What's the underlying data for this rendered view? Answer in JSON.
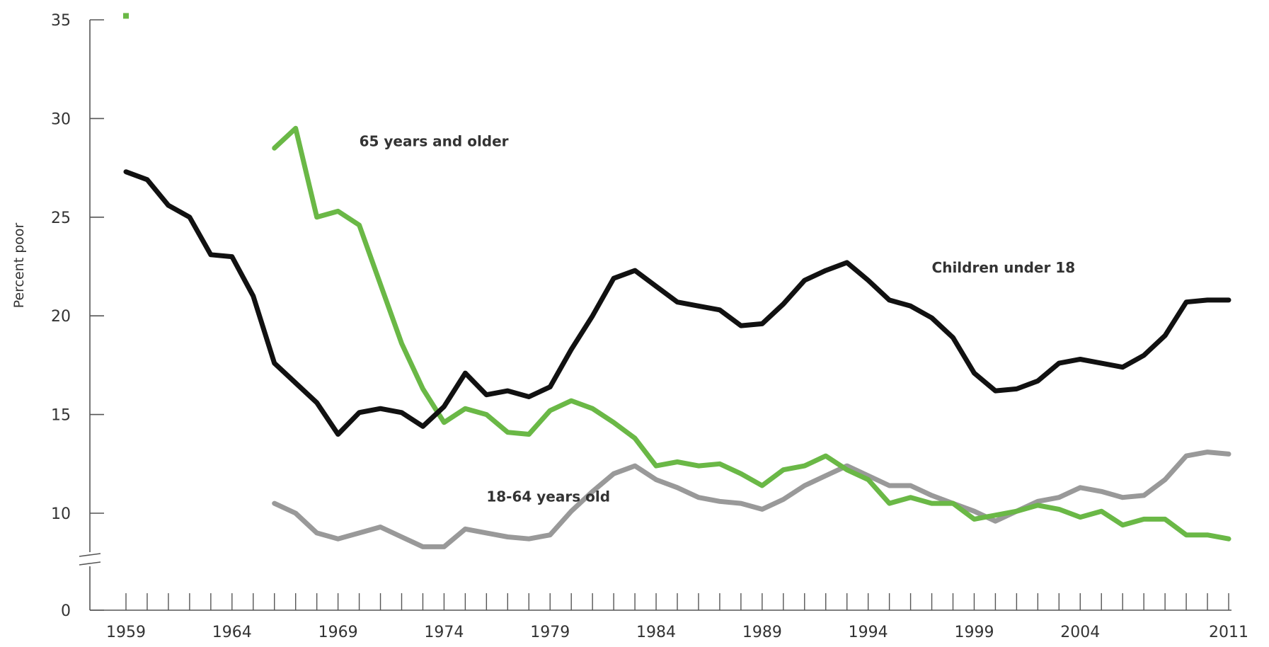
{
  "chart_data": {
    "type": "line",
    "title": "",
    "xlabel": "",
    "ylabel": "Percent poor",
    "xlim": [
      1959,
      2011
    ],
    "ylim": [
      0,
      35
    ],
    "y_axis_break": true,
    "grid": false,
    "legend": "inline-labels",
    "x_tick_labels": [
      "1959",
      "1964",
      "1969",
      "1974",
      "1979",
      "1984",
      "1989",
      "1994",
      "1999",
      "2004",
      "2011"
    ],
    "x_tick_values": [
      1959,
      1964,
      1969,
      1974,
      1979,
      1984,
      1989,
      1994,
      1999,
      2004,
      2011
    ],
    "y_tick_labels": [
      "0",
      "10",
      "15",
      "20",
      "25",
      "30",
      "35"
    ],
    "y_tick_values": [
      0,
      10,
      15,
      20,
      25,
      30,
      35
    ],
    "series": [
      {
        "name": "Children under 18",
        "color": "#111111",
        "x": [
          1959,
          1960,
          1961,
          1962,
          1963,
          1964,
          1965,
          1966,
          1967,
          1968,
          1969,
          1970,
          1971,
          1972,
          1973,
          1974,
          1975,
          1976,
          1977,
          1978,
          1979,
          1980,
          1981,
          1982,
          1983,
          1984,
          1985,
          1986,
          1987,
          1988,
          1989,
          1990,
          1991,
          1992,
          1993,
          1994,
          1995,
          1996,
          1997,
          1998,
          1999,
          2000,
          2001,
          2002,
          2003,
          2004,
          2005,
          2006,
          2007,
          2008,
          2009,
          2010,
          2011
        ],
        "values": [
          27.3,
          26.9,
          25.6,
          25.0,
          23.1,
          23.0,
          21.0,
          17.6,
          16.6,
          15.6,
          14.0,
          15.1,
          15.3,
          15.1,
          14.4,
          15.4,
          17.1,
          16.0,
          16.2,
          15.9,
          16.4,
          18.3,
          20.0,
          21.9,
          22.3,
          21.5,
          20.7,
          20.5,
          20.3,
          19.5,
          19.6,
          20.6,
          21.8,
          22.3,
          22.7,
          21.8,
          20.8,
          20.5,
          19.9,
          18.9,
          17.1,
          16.2,
          16.3,
          16.7,
          17.6,
          17.8,
          17.6,
          17.4,
          18.0,
          19.0,
          20.7,
          20.8,
          20.8
        ]
      },
      {
        "name": "65 years and older",
        "color": "#6ab846",
        "x": [
          1966,
          1967,
          1968,
          1969,
          1970,
          1971,
          1972,
          1973,
          1974,
          1975,
          1976,
          1977,
          1978,
          1979,
          1980,
          1981,
          1982,
          1983,
          1984,
          1985,
          1986,
          1987,
          1988,
          1989,
          1990,
          1991,
          1992,
          1993,
          1994,
          1995,
          1996,
          1997,
          1998,
          1999,
          2000,
          2001,
          2002,
          2003,
          2004,
          2005,
          2006,
          2007,
          2008,
          2009,
          2010,
          2011
        ],
        "values": [
          28.5,
          29.5,
          25.0,
          25.3,
          24.6,
          21.6,
          18.6,
          16.3,
          14.6,
          15.3,
          15.0,
          14.1,
          14.0,
          15.2,
          15.7,
          15.3,
          14.6,
          13.8,
          12.4,
          12.6,
          12.4,
          12.5,
          12.0,
          11.4,
          12.2,
          12.4,
          12.9,
          12.2,
          11.7,
          10.5,
          10.8,
          10.5,
          10.5,
          9.7,
          9.9,
          10.1,
          10.4,
          10.2,
          9.8,
          10.1,
          9.4,
          9.7,
          9.7,
          8.9,
          8.9,
          8.7
        ],
        "extra_points": [
          {
            "x": 1959,
            "y": 35.2
          }
        ]
      },
      {
        "name": "18-64 years old",
        "color": "#999999",
        "x": [
          1966,
          1967,
          1968,
          1969,
          1970,
          1971,
          1972,
          1973,
          1974,
          1975,
          1976,
          1977,
          1978,
          1979,
          1980,
          1981,
          1982,
          1983,
          1984,
          1985,
          1986,
          1987,
          1988,
          1989,
          1990,
          1991,
          1992,
          1993,
          1994,
          1995,
          1996,
          1997,
          1998,
          1999,
          2000,
          2001,
          2002,
          2003,
          2004,
          2005,
          2006,
          2007,
          2008,
          2009,
          2010,
          2011
        ],
        "values": [
          10.5,
          10.0,
          9.0,
          8.7,
          9.0,
          9.3,
          8.8,
          8.3,
          8.3,
          9.2,
          9.0,
          8.8,
          8.7,
          8.9,
          10.1,
          11.1,
          12.0,
          12.4,
          11.7,
          11.3,
          10.8,
          10.6,
          10.5,
          10.2,
          10.7,
          11.4,
          11.9,
          12.4,
          11.9,
          11.4,
          11.4,
          10.9,
          10.5,
          10.1,
          9.6,
          10.1,
          10.6,
          10.8,
          11.3,
          11.1,
          10.8,
          10.9,
          11.7,
          12.9,
          13.1,
          13.0
        ]
      }
    ],
    "annotations": [
      {
        "text": "65 years and older",
        "x": 1970,
        "y": 28.6,
        "series": "65 years and older"
      },
      {
        "text": "Children under 18",
        "x": 1997,
        "y": 22.2,
        "series": "Children under 18"
      },
      {
        "text": "18-64 years old",
        "x": 1976,
        "y": 10.6,
        "series": "18-64 years old"
      }
    ]
  }
}
